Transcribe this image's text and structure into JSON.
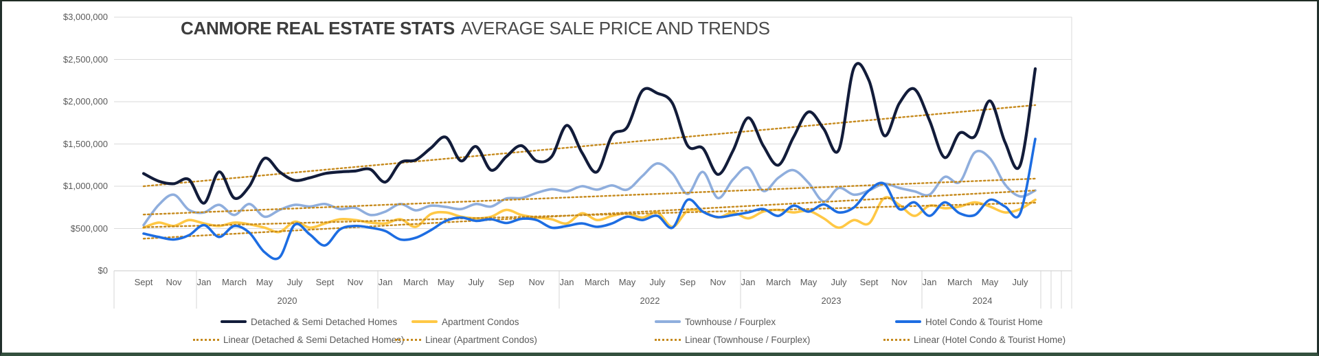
{
  "frame": {
    "border_color": "#22302c"
  },
  "chart_data": {
    "type": "line",
    "title": {
      "bold": "CANMORE REAL ESTATE STATS",
      "rest": "AVERAGE SALE PRICE AND TRENDS"
    },
    "grid": "horizontal-on",
    "legend_position": "bottom-two-rows",
    "y_axis": {
      "min": 0,
      "max": 3000000,
      "tick_step": 500000,
      "ticks": [
        {
          "label": "$3,000,000",
          "value": 3000000
        },
        {
          "label": "$2,500,000",
          "value": 2500000
        },
        {
          "label": "$2,000,000",
          "value": 2000000
        },
        {
          "label": "$1,500,000",
          "value": 1500000
        },
        {
          "label": "$1,000,000",
          "value": 1000000
        },
        {
          "label": "$500,000",
          "value": 500000
        },
        {
          "label": "$0",
          "value": 0
        }
      ]
    },
    "x_axis": {
      "start": "Sept 2019",
      "end": "Aug 2024",
      "interval": "monthly",
      "months": [
        {
          "i": 0,
          "label": "Sept"
        },
        {
          "i": 2,
          "label": "Nov"
        },
        {
          "i": 4,
          "label": "Jan"
        },
        {
          "i": 6,
          "label": "March"
        },
        {
          "i": 8,
          "label": "May"
        },
        {
          "i": 10,
          "label": "July"
        },
        {
          "i": 12,
          "label": "Sept"
        },
        {
          "i": 14,
          "label": "Nov"
        },
        {
          "i": 16,
          "label": "Jan"
        },
        {
          "i": 18,
          "label": "March"
        },
        {
          "i": 20,
          "label": "May"
        },
        {
          "i": 22,
          "label": "July"
        },
        {
          "i": 24,
          "label": "Sep"
        },
        {
          "i": 26,
          "label": "Nov"
        },
        {
          "i": 28,
          "label": "Jan"
        },
        {
          "i": 30,
          "label": "March"
        },
        {
          "i": 32,
          "label": "May"
        },
        {
          "i": 34,
          "label": "July"
        },
        {
          "i": 36,
          "label": "Sep"
        },
        {
          "i": 38,
          "label": "Nov"
        },
        {
          "i": 40,
          "label": "Jan"
        },
        {
          "i": 42,
          "label": "March"
        },
        {
          "i": 44,
          "label": "May"
        },
        {
          "i": 46,
          "label": "July"
        },
        {
          "i": 48,
          "label": "Sept"
        },
        {
          "i": 50,
          "label": "Nov"
        },
        {
          "i": 52,
          "label": "Jan"
        },
        {
          "i": 54,
          "label": "March"
        },
        {
          "i": 56,
          "label": "May"
        },
        {
          "i": 58,
          "label": "July"
        }
      ],
      "years": [
        {
          "label": "2020",
          "center_i": 9.5
        },
        {
          "label": "2022",
          "center_i": 33.5
        },
        {
          "label": "2023",
          "center_i": 45.5
        },
        {
          "label": "2024",
          "center_i": 55.5
        }
      ]
    },
    "series": [
      {
        "name": "Detached & Semi Detached Homes",
        "color": "#121c3a",
        "values": [
          1150000,
          1060000,
          1030000,
          1080000,
          800000,
          1170000,
          860000,
          1000000,
          1330000,
          1170000,
          1070000,
          1100000,
          1150000,
          1170000,
          1180000,
          1200000,
          1050000,
          1280000,
          1310000,
          1450000,
          1580000,
          1300000,
          1470000,
          1190000,
          1350000,
          1480000,
          1300000,
          1350000,
          1720000,
          1400000,
          1170000,
          1600000,
          1700000,
          2130000,
          2100000,
          1980000,
          1480000,
          1450000,
          1140000,
          1420000,
          1810000,
          1480000,
          1250000,
          1580000,
          1880000,
          1680000,
          1430000,
          2400000,
          2250000,
          1600000,
          1980000,
          2150000,
          1780000,
          1340000,
          1630000,
          1590000,
          2010000,
          1520000,
          1250000,
          2390000
        ]
      },
      {
        "name": "Apartment Condos",
        "color": "#ffc845",
        "values": [
          510000,
          570000,
          530000,
          600000,
          560000,
          530000,
          570000,
          550000,
          510000,
          460000,
          580000,
          510000,
          560000,
          610000,
          600000,
          570000,
          560000,
          610000,
          520000,
          670000,
          690000,
          640000,
          620000,
          640000,
          720000,
          660000,
          630000,
          610000,
          560000,
          680000,
          600000,
          650000,
          680000,
          630000,
          690000,
          520000,
          710000,
          700000,
          630000,
          690000,
          620000,
          700000,
          720000,
          690000,
          710000,
          620000,
          510000,
          600000,
          560000,
          860000,
          780000,
          650000,
          770000,
          740000,
          760000,
          810000,
          760000,
          690000,
          730000,
          840000
        ]
      },
      {
        "name": "Townhouse / Fourplex",
        "color": "#8faedd",
        "values": [
          540000,
          780000,
          900000,
          720000,
          690000,
          780000,
          660000,
          790000,
          640000,
          720000,
          780000,
          760000,
          790000,
          730000,
          745000,
          660000,
          700000,
          790000,
          715000,
          770000,
          755000,
          730000,
          790000,
          760000,
          855000,
          860000,
          920000,
          965000,
          940000,
          1000000,
          960000,
          1010000,
          960000,
          1120000,
          1270000,
          1150000,
          910000,
          1170000,
          860000,
          1080000,
          1220000,
          945000,
          1100000,
          1190000,
          1040000,
          820000,
          980000,
          900000,
          950000,
          1030000,
          980000,
          940000,
          900000,
          1110000,
          1050000,
          1400000,
          1330000,
          1020000,
          880000,
          950000
        ]
      },
      {
        "name": "Hotel Condo & Tourist Home",
        "color": "#1d6de2",
        "values": [
          440000,
          400000,
          370000,
          420000,
          540000,
          400000,
          530000,
          450000,
          220000,
          160000,
          545000,
          430000,
          300000,
          490000,
          530000,
          510000,
          470000,
          370000,
          390000,
          480000,
          590000,
          630000,
          590000,
          610000,
          565000,
          615000,
          600000,
          510000,
          530000,
          560000,
          520000,
          560000,
          640000,
          600000,
          650000,
          510000,
          840000,
          700000,
          635000,
          660000,
          690000,
          730000,
          650000,
          770000,
          700000,
          785000,
          690000,
          750000,
          950000,
          1030000,
          730000,
          810000,
          650000,
          810000,
          680000,
          660000,
          840000,
          760000,
          680000,
          1560000
        ]
      }
    ],
    "trendlines": [
      {
        "name": "Linear (Detached & Semi Detached Homes)",
        "color": "#c68a1d",
        "start_value": 1000000,
        "end_value": 1960000
      },
      {
        "name": "Linear (Apartment Condos)",
        "color": "#c68a1d",
        "start_value": 515000,
        "end_value": 805000
      },
      {
        "name": "Linear (Townhouse / Fourplex)",
        "color": "#c68a1d",
        "start_value": 665000,
        "end_value": 1090000
      },
      {
        "name": "Linear (Hotel Condo & Tourist Home)",
        "color": "#c68a1d",
        "start_value": 380000,
        "end_value": 950000
      }
    ]
  }
}
